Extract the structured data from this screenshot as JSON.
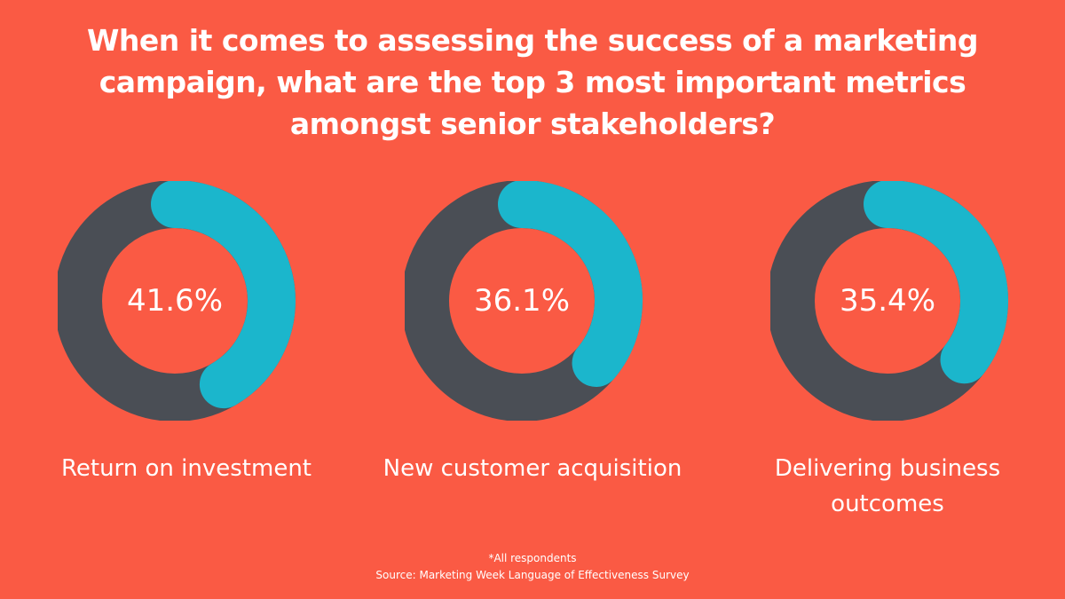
{
  "colors": {
    "background": "#fa5a44",
    "track": "#4a4e55",
    "fill": "#1bb6cc",
    "text": "#ffffff"
  },
  "title": {
    "lines": [
      "When it comes to assessing the success of a marketing",
      "campaign, what are the top 3 most important metrics",
      "amongst senior stakeholders?"
    ]
  },
  "chart_data": [
    {
      "type": "pie",
      "variant": "donut",
      "value": 41.6,
      "value_label": "41.6%",
      "label": "Return on investment",
      "label_lines": [
        "Return on investment"
      ]
    },
    {
      "type": "pie",
      "variant": "donut",
      "value": 36.1,
      "value_label": "36.1%",
      "label": "New customer acquisition",
      "label_lines": [
        "New customer acquisition"
      ]
    },
    {
      "type": "pie",
      "variant": "donut",
      "value": 35.4,
      "value_label": "35.4%",
      "label": "Delivering business outcomes",
      "label_lines": [
        "Delivering business",
        "outcomes"
      ]
    }
  ],
  "footnote": {
    "line1": "*All respondents",
    "line2": "Source: Marketing Week Language of Effectiveness Survey"
  }
}
